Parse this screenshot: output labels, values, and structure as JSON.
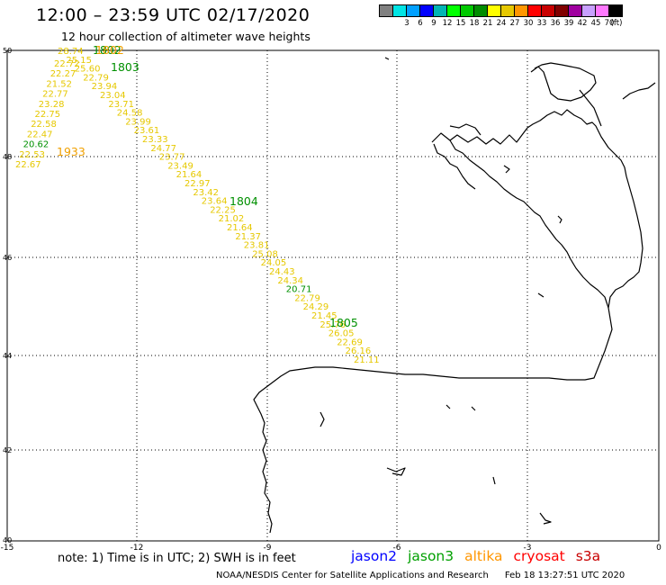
{
  "header": {
    "title": "12:00  –  23:59  UTC  02/17/2020",
    "subtitle": "12 hour collection of altimeter wave heights"
  },
  "legend": {
    "unit": "(ft)",
    "swatches": [
      {
        "color": "#808080",
        "label": ""
      },
      {
        "color": "#00e4e4",
        "label": "3"
      },
      {
        "color": "#00a0ff",
        "label": "6"
      },
      {
        "color": "#0000ff",
        "label": "9"
      },
      {
        "color": "#00b4b4",
        "label": "12"
      },
      {
        "color": "#00ff00",
        "label": "15"
      },
      {
        "color": "#00c800",
        "label": "18"
      },
      {
        "color": "#008c00",
        "label": "21"
      },
      {
        "color": "#ffff00",
        "label": "24"
      },
      {
        "color": "#e6c800",
        "label": "27"
      },
      {
        "color": "#ff9600",
        "label": "30"
      },
      {
        "color": "#ff0000",
        "label": "33"
      },
      {
        "color": "#c80000",
        "label": "36"
      },
      {
        "color": "#800000",
        "label": "39"
      },
      {
        "color": "#a000a0",
        "label": "42"
      },
      {
        "color": "#c8a0ff",
        "label": "45"
      },
      {
        "color": "#ff78ff",
        "label": "70"
      },
      {
        "color": "#000000",
        "label": ""
      }
    ]
  },
  "axes": {
    "lon_ticks": [
      "-15",
      "-12",
      "-9",
      "-6",
      "-3",
      "0"
    ],
    "lat_ticks": [
      "50",
      "48",
      "46",
      "44",
      "42",
      "40"
    ]
  },
  "colors": {
    "wave_yellow": "#e6c800",
    "wave_orange": "#f0a000",
    "jason3_green": "#009000",
    "grid": "#000000",
    "coast": "#000000"
  },
  "times": [
    {
      "label": "1802",
      "color": "#009000"
    },
    {
      "label": "1802",
      "color": "#f0a000"
    },
    {
      "label": "1803",
      "color": "#009000"
    },
    {
      "label": "1933",
      "color": "#f0a000"
    },
    {
      "label": "1804",
      "color": "#009000"
    },
    {
      "label": "1805",
      "color": "#009000"
    }
  ],
  "track_main": [
    {
      "v": "28.74",
      "c": "#e6c800"
    },
    {
      "v": "25.15",
      "c": "#e6c800"
    },
    {
      "v": "25.60",
      "c": "#e6c800"
    },
    {
      "v": "22.79",
      "c": "#e6c800"
    },
    {
      "v": "23.94",
      "c": "#e6c800"
    },
    {
      "v": "23.04",
      "c": "#e6c800"
    },
    {
      "v": "23.71",
      "c": "#e6c800"
    },
    {
      "v": "24.58",
      "c": "#e6c800"
    },
    {
      "v": "23.99",
      "c": "#e6c800"
    },
    {
      "v": "23.61",
      "c": "#e6c800"
    },
    {
      "v": "23.33",
      "c": "#e6c800"
    },
    {
      "v": "24.77",
      "c": "#e6c800"
    },
    {
      "v": "23.77",
      "c": "#e6c800"
    },
    {
      "v": "23.49",
      "c": "#e6c800"
    },
    {
      "v": "21.64",
      "c": "#e6c800"
    },
    {
      "v": "22.97",
      "c": "#e6c800"
    },
    {
      "v": "23.42",
      "c": "#e6c800"
    },
    {
      "v": "23.64",
      "c": "#e6c800"
    },
    {
      "v": "22.25",
      "c": "#e6c800"
    },
    {
      "v": "21.02",
      "c": "#e6c800"
    },
    {
      "v": "21.64",
      "c": "#e6c800"
    },
    {
      "v": "21.37",
      "c": "#e6c800"
    },
    {
      "v": "23.81",
      "c": "#e6c800"
    },
    {
      "v": "25.08",
      "c": "#e6c800"
    },
    {
      "v": "24.05",
      "c": "#e6c800"
    },
    {
      "v": "24.43",
      "c": "#e6c800"
    },
    {
      "v": "24.34",
      "c": "#e6c800"
    },
    {
      "v": "20.71",
      "c": "#009000"
    },
    {
      "v": "22.79",
      "c": "#e6c800"
    },
    {
      "v": "24.29",
      "c": "#e6c800"
    },
    {
      "v": "21.45",
      "c": "#e6c800"
    },
    {
      "v": "25.76",
      "c": "#e6c800"
    },
    {
      "v": "26.05",
      "c": "#e6c800"
    },
    {
      "v": "22.69",
      "c": "#e6c800"
    },
    {
      "v": "26.16",
      "c": "#e6c800"
    },
    {
      "v": "21.11",
      "c": "#e6c800"
    }
  ],
  "track_west": [
    {
      "v": "22.72",
      "c": "#e6c800"
    },
    {
      "v": "22.27",
      "c": "#e6c800"
    },
    {
      "v": "21.52",
      "c": "#e6c800"
    },
    {
      "v": "22.77",
      "c": "#e6c800"
    },
    {
      "v": "23.28",
      "c": "#e6c800"
    },
    {
      "v": "22.75",
      "c": "#e6c800"
    },
    {
      "v": "22.58",
      "c": "#e6c800"
    },
    {
      "v": "22.47",
      "c": "#e6c800"
    },
    {
      "v": "20.62",
      "c": "#009000"
    },
    {
      "v": "22.53",
      "c": "#e6c800"
    },
    {
      "v": "22.67",
      "c": "#e6c800"
    }
  ],
  "footer": {
    "note": "note:  1) Time is in UTC;  2) SWH is in feet",
    "satellites": [
      {
        "name": "jason2",
        "color": "#0000ff"
      },
      {
        "name": "jason3",
        "color": "#00a000"
      },
      {
        "name": "altika",
        "color": "#ff9600"
      },
      {
        "name": "cryosat",
        "color": "#ff0000"
      },
      {
        "name": "s3a",
        "color": "#c80000"
      }
    ],
    "credit": "NOAA/NESDIS Center for Satellite Applications and Research",
    "timestamp": "Feb 18 13:27:51 UTC 2020"
  }
}
